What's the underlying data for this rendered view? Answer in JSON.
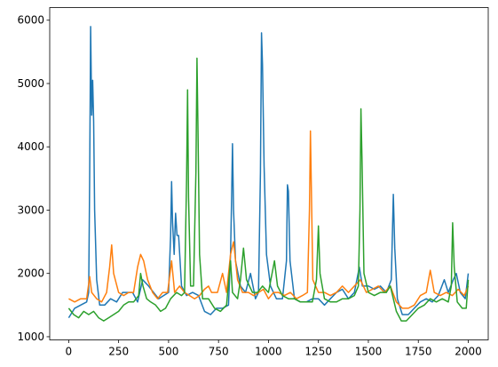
{
  "chart_data": {
    "type": "line",
    "title": "",
    "xlabel": "",
    "ylabel": "",
    "xlim": [
      -95,
      2100
    ],
    "ylim": [
      950,
      6200
    ],
    "grid": false,
    "xticks": [
      0,
      250,
      500,
      750,
      1000,
      1250,
      1500,
      1750,
      2000
    ],
    "yticks": [
      1000,
      2000,
      3000,
      4000,
      5000,
      6000
    ],
    "series": [
      {
        "color": "#1f77b4",
        "points": [
          [
            0,
            1300
          ],
          [
            30,
            1450
          ],
          [
            60,
            1500
          ],
          [
            90,
            1550
          ],
          [
            100,
            1700
          ],
          [
            105,
            3500
          ],
          [
            110,
            5900
          ],
          [
            115,
            4500
          ],
          [
            120,
            5050
          ],
          [
            125,
            4400
          ],
          [
            130,
            3000
          ],
          [
            140,
            1900
          ],
          [
            155,
            1500
          ],
          [
            180,
            1500
          ],
          [
            210,
            1600
          ],
          [
            240,
            1550
          ],
          [
            270,
            1700
          ],
          [
            300,
            1700
          ],
          [
            320,
            1700
          ],
          [
            345,
            1550
          ],
          [
            370,
            1900
          ],
          [
            400,
            1800
          ],
          [
            425,
            1700
          ],
          [
            450,
            1600
          ],
          [
            475,
            1650
          ],
          [
            500,
            1700
          ],
          [
            510,
            2600
          ],
          [
            515,
            3450
          ],
          [
            520,
            2800
          ],
          [
            528,
            2300
          ],
          [
            535,
            2950
          ],
          [
            542,
            2600
          ],
          [
            550,
            2600
          ],
          [
            565,
            1800
          ],
          [
            590,
            1650
          ],
          [
            620,
            1700
          ],
          [
            650,
            1650
          ],
          [
            680,
            1400
          ],
          [
            710,
            1350
          ],
          [
            740,
            1450
          ],
          [
            770,
            1450
          ],
          [
            800,
            1500
          ],
          [
            810,
            2300
          ],
          [
            815,
            3100
          ],
          [
            820,
            4050
          ],
          [
            825,
            3000
          ],
          [
            835,
            2200
          ],
          [
            860,
            1800
          ],
          [
            885,
            1700
          ],
          [
            910,
            2000
          ],
          [
            935,
            1600
          ],
          [
            950,
            1700
          ],
          [
            960,
            3600
          ],
          [
            965,
            5800
          ],
          [
            970,
            5300
          ],
          [
            978,
            3700
          ],
          [
            990,
            2300
          ],
          [
            1010,
            1800
          ],
          [
            1040,
            1600
          ],
          [
            1070,
            1600
          ],
          [
            1090,
            2200
          ],
          [
            1095,
            3400
          ],
          [
            1100,
            3300
          ],
          [
            1108,
            2200
          ],
          [
            1130,
            1600
          ],
          [
            1160,
            1550
          ],
          [
            1190,
            1550
          ],
          [
            1220,
            1600
          ],
          [
            1250,
            1600
          ],
          [
            1280,
            1500
          ],
          [
            1310,
            1600
          ],
          [
            1340,
            1700
          ],
          [
            1370,
            1750
          ],
          [
            1400,
            1600
          ],
          [
            1430,
            1700
          ],
          [
            1455,
            2100
          ],
          [
            1470,
            1800
          ],
          [
            1500,
            1800
          ],
          [
            1530,
            1750
          ],
          [
            1560,
            1800
          ],
          [
            1590,
            1700
          ],
          [
            1615,
            1900
          ],
          [
            1625,
            3250
          ],
          [
            1632,
            2400
          ],
          [
            1645,
            1600
          ],
          [
            1670,
            1350
          ],
          [
            1700,
            1350
          ],
          [
            1730,
            1450
          ],
          [
            1760,
            1550
          ],
          [
            1790,
            1600
          ],
          [
            1820,
            1550
          ],
          [
            1850,
            1650
          ],
          [
            1880,
            1900
          ],
          [
            1900,
            1700
          ],
          [
            1925,
            1900
          ],
          [
            1940,
            2000
          ],
          [
            1960,
            1700
          ],
          [
            1985,
            1600
          ],
          [
            2000,
            2000
          ]
        ]
      },
      {
        "color": "#ff7f0e",
        "points": [
          [
            0,
            1600
          ],
          [
            30,
            1550
          ],
          [
            60,
            1600
          ],
          [
            90,
            1600
          ],
          [
            105,
            1950
          ],
          [
            115,
            1700
          ],
          [
            140,
            1600
          ],
          [
            165,
            1550
          ],
          [
            190,
            1700
          ],
          [
            205,
            2100
          ],
          [
            215,
            2450
          ],
          [
            225,
            2000
          ],
          [
            250,
            1700
          ],
          [
            275,
            1650
          ],
          [
            300,
            1700
          ],
          [
            325,
            1700
          ],
          [
            345,
            2100
          ],
          [
            360,
            2300
          ],
          [
            375,
            2200
          ],
          [
            395,
            1900
          ],
          [
            420,
            1700
          ],
          [
            445,
            1600
          ],
          [
            470,
            1700
          ],
          [
            495,
            1700
          ],
          [
            515,
            2200
          ],
          [
            530,
            1700
          ],
          [
            555,
            1800
          ],
          [
            580,
            1700
          ],
          [
            605,
            1650
          ],
          [
            630,
            1600
          ],
          [
            655,
            1650
          ],
          [
            680,
            1750
          ],
          [
            700,
            1800
          ],
          [
            715,
            1700
          ],
          [
            745,
            1700
          ],
          [
            770,
            2000
          ],
          [
            790,
            1700
          ],
          [
            810,
            2300
          ],
          [
            825,
            2500
          ],
          [
            845,
            1900
          ],
          [
            870,
            1700
          ],
          [
            900,
            1700
          ],
          [
            925,
            1650
          ],
          [
            950,
            1700
          ],
          [
            975,
            1750
          ],
          [
            1000,
            1600
          ],
          [
            1025,
            1700
          ],
          [
            1050,
            1700
          ],
          [
            1080,
            1650
          ],
          [
            1110,
            1700
          ],
          [
            1140,
            1600
          ],
          [
            1170,
            1650
          ],
          [
            1195,
            1700
          ],
          [
            1205,
            3000
          ],
          [
            1210,
            4250
          ],
          [
            1215,
            3300
          ],
          [
            1222,
            1900
          ],
          [
            1250,
            1700
          ],
          [
            1280,
            1700
          ],
          [
            1310,
            1650
          ],
          [
            1340,
            1700
          ],
          [
            1370,
            1800
          ],
          [
            1400,
            1700
          ],
          [
            1430,
            1800
          ],
          [
            1460,
            1900
          ],
          [
            1490,
            1700
          ],
          [
            1520,
            1750
          ],
          [
            1550,
            1800
          ],
          [
            1580,
            1700
          ],
          [
            1610,
            1800
          ],
          [
            1640,
            1550
          ],
          [
            1670,
            1450
          ],
          [
            1700,
            1450
          ],
          [
            1730,
            1500
          ],
          [
            1760,
            1650
          ],
          [
            1790,
            1700
          ],
          [
            1810,
            2050
          ],
          [
            1830,
            1700
          ],
          [
            1860,
            1650
          ],
          [
            1890,
            1700
          ],
          [
            1920,
            1650
          ],
          [
            1950,
            1750
          ],
          [
            1980,
            1650
          ],
          [
            2000,
            1800
          ]
        ]
      },
      {
        "color": "#2ca02c",
        "points": [
          [
            0,
            1450
          ],
          [
            25,
            1350
          ],
          [
            50,
            1300
          ],
          [
            75,
            1400
          ],
          [
            100,
            1350
          ],
          [
            125,
            1400
          ],
          [
            150,
            1300
          ],
          [
            175,
            1250
          ],
          [
            200,
            1300
          ],
          [
            225,
            1350
          ],
          [
            250,
            1400
          ],
          [
            275,
            1500
          ],
          [
            300,
            1550
          ],
          [
            325,
            1550
          ],
          [
            350,
            1650
          ],
          [
            360,
            2000
          ],
          [
            372,
            1800
          ],
          [
            390,
            1600
          ],
          [
            410,
            1550
          ],
          [
            435,
            1500
          ],
          [
            460,
            1400
          ],
          [
            485,
            1450
          ],
          [
            510,
            1600
          ],
          [
            540,
            1700
          ],
          [
            565,
            1650
          ],
          [
            580,
            1700
          ],
          [
            590,
            3500
          ],
          [
            595,
            4900
          ],
          [
            600,
            3200
          ],
          [
            610,
            1800
          ],
          [
            625,
            1800
          ],
          [
            637,
            3600
          ],
          [
            642,
            5400
          ],
          [
            647,
            4300
          ],
          [
            655,
            2300
          ],
          [
            670,
            1600
          ],
          [
            700,
            1600
          ],
          [
            730,
            1450
          ],
          [
            760,
            1400
          ],
          [
            790,
            1500
          ],
          [
            810,
            2200
          ],
          [
            820,
            1700
          ],
          [
            845,
            1600
          ],
          [
            860,
            1900
          ],
          [
            875,
            2400
          ],
          [
            890,
            1900
          ],
          [
            920,
            1700
          ],
          [
            945,
            1700
          ],
          [
            970,
            1800
          ],
          [
            1000,
            1700
          ],
          [
            1030,
            2200
          ],
          [
            1045,
            1800
          ],
          [
            1070,
            1650
          ],
          [
            1100,
            1600
          ],
          [
            1130,
            1600
          ],
          [
            1160,
            1550
          ],
          [
            1190,
            1550
          ],
          [
            1220,
            1550
          ],
          [
            1240,
            1900
          ],
          [
            1250,
            2750
          ],
          [
            1258,
            2000
          ],
          [
            1280,
            1600
          ],
          [
            1310,
            1550
          ],
          [
            1340,
            1550
          ],
          [
            1370,
            1600
          ],
          [
            1400,
            1600
          ],
          [
            1430,
            1650
          ],
          [
            1450,
            1800
          ],
          [
            1458,
            3000
          ],
          [
            1463,
            4600
          ],
          [
            1468,
            3800
          ],
          [
            1478,
            2000
          ],
          [
            1500,
            1700
          ],
          [
            1530,
            1650
          ],
          [
            1560,
            1700
          ],
          [
            1590,
            1700
          ],
          [
            1610,
            1800
          ],
          [
            1640,
            1400
          ],
          [
            1665,
            1250
          ],
          [
            1690,
            1250
          ],
          [
            1720,
            1350
          ],
          [
            1750,
            1450
          ],
          [
            1780,
            1500
          ],
          [
            1810,
            1600
          ],
          [
            1840,
            1550
          ],
          [
            1870,
            1600
          ],
          [
            1900,
            1550
          ],
          [
            1915,
            1800
          ],
          [
            1922,
            2800
          ],
          [
            1930,
            2100
          ],
          [
            1945,
            1550
          ],
          [
            1970,
            1450
          ],
          [
            1990,
            1450
          ],
          [
            2000,
            1900
          ]
        ]
      }
    ]
  }
}
